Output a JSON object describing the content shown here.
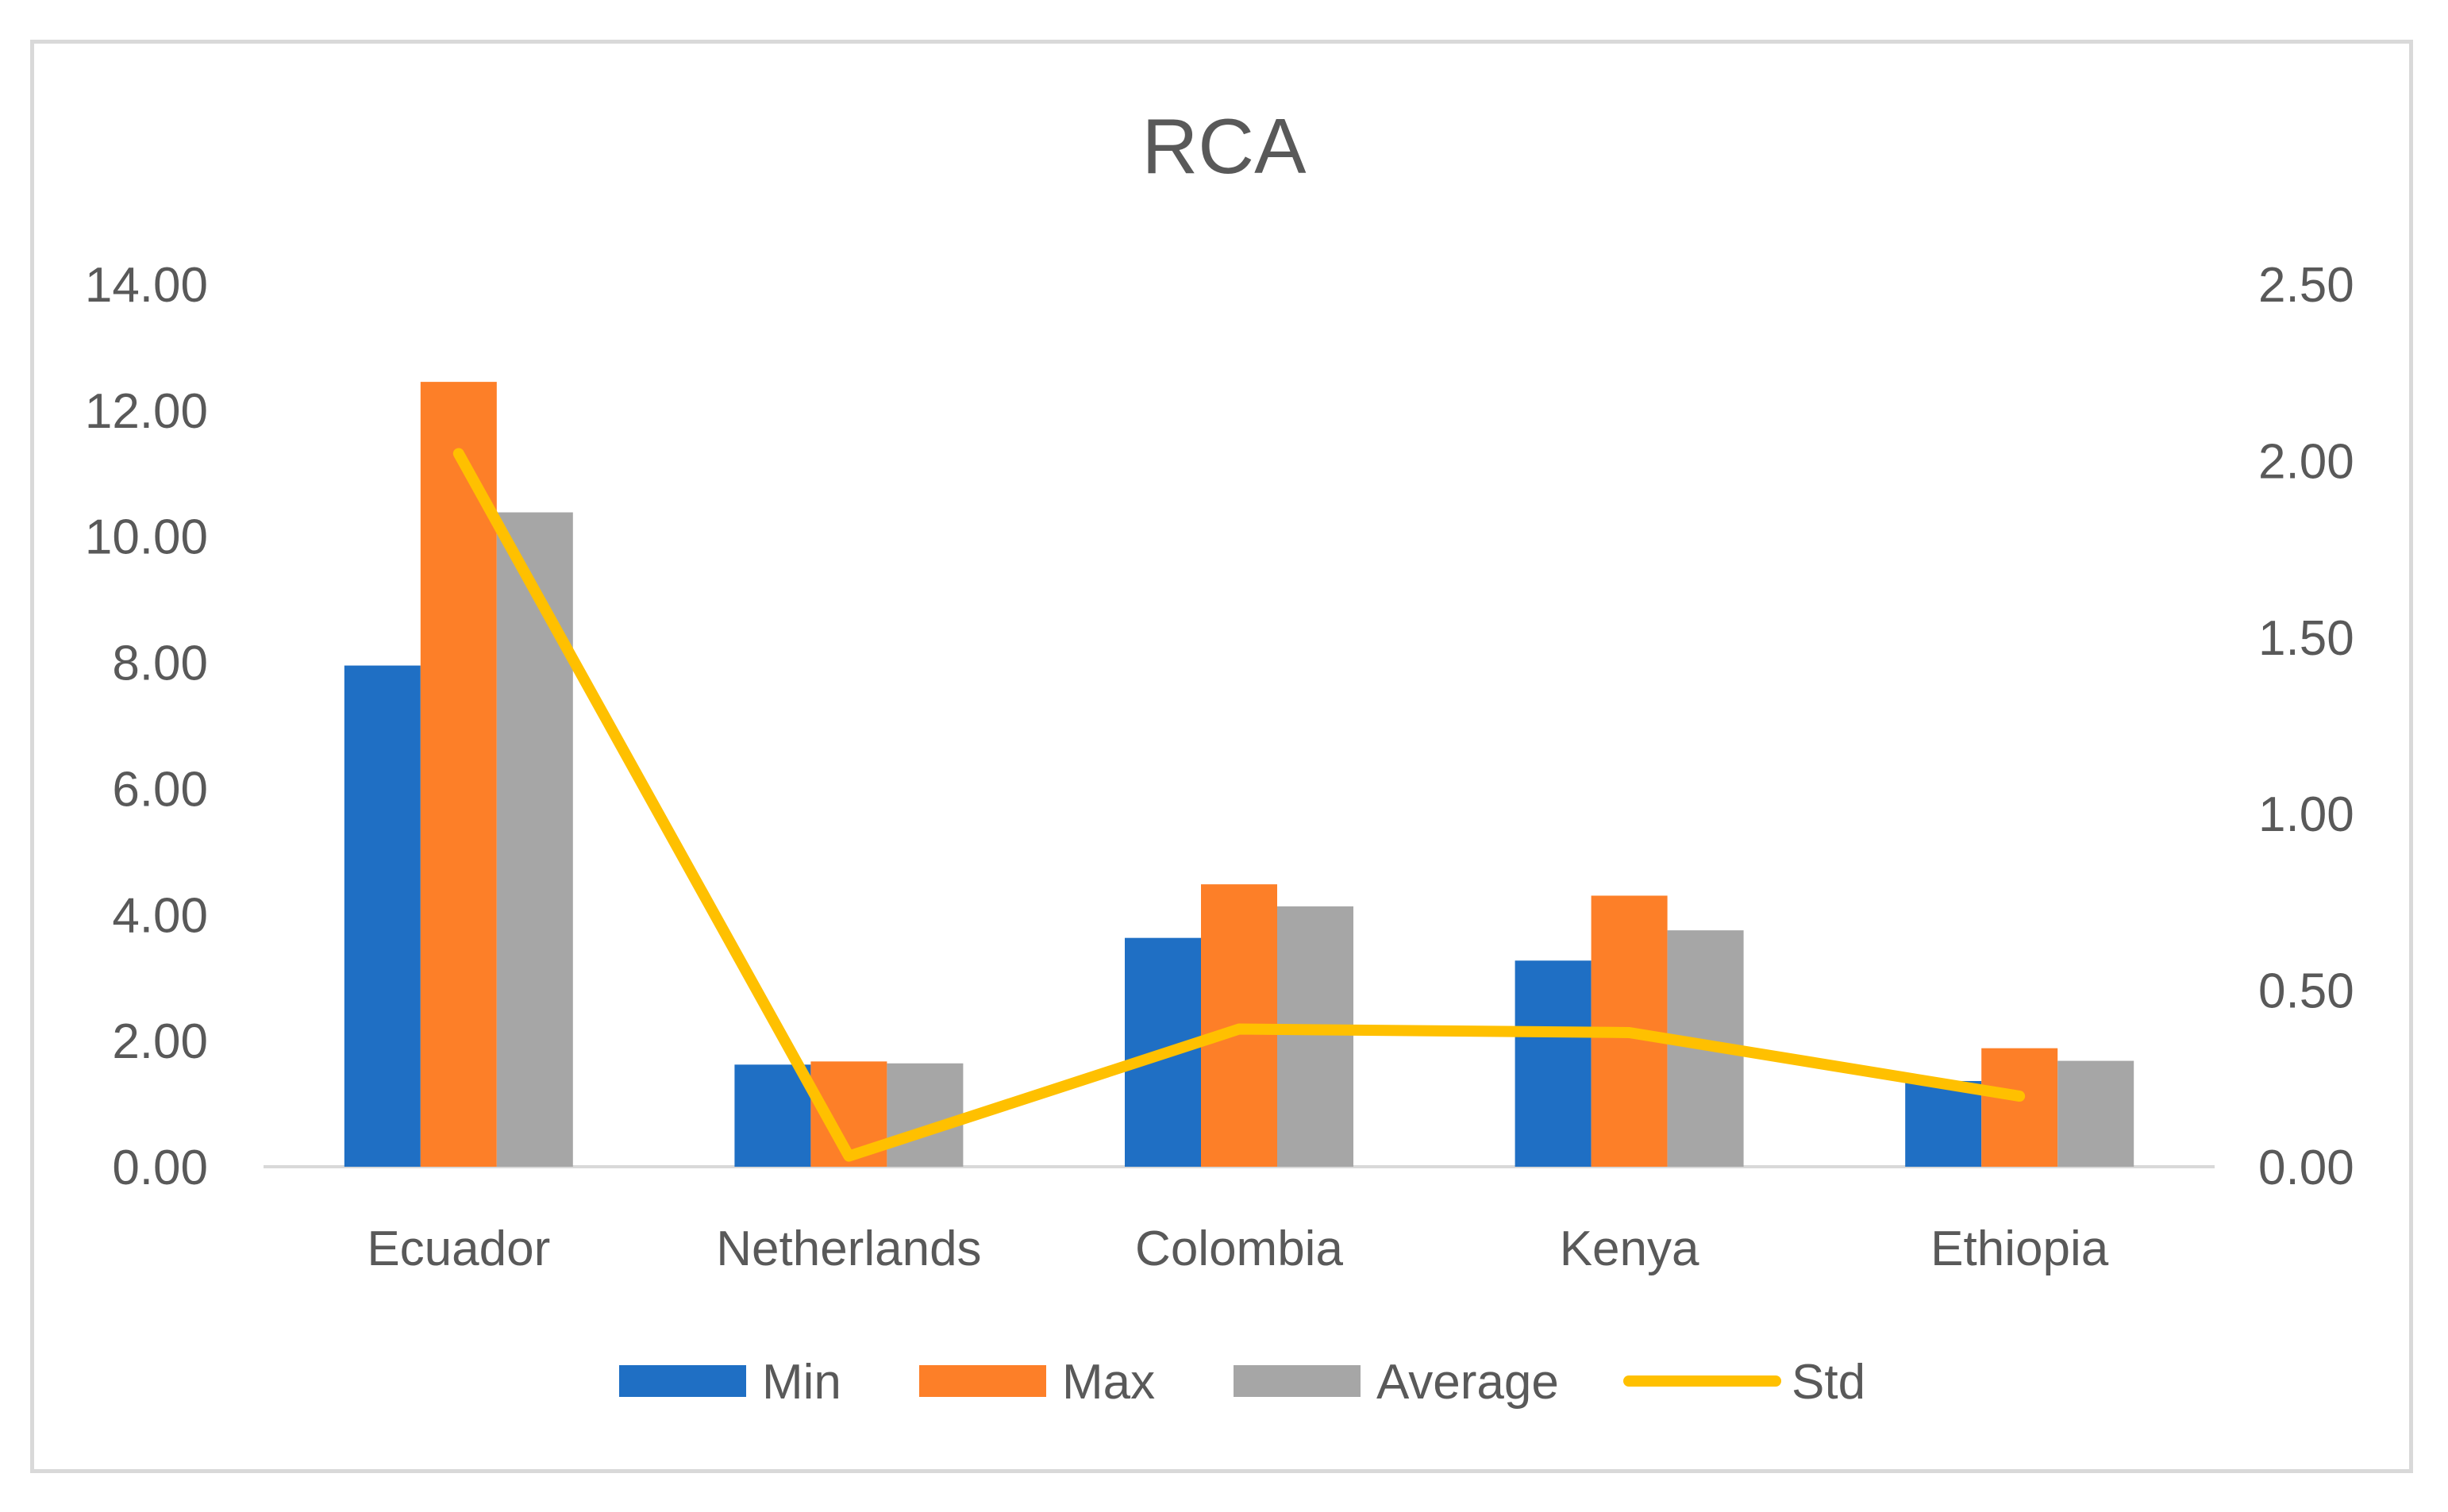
{
  "chart_data": {
    "type": "bar",
    "title": "RCA",
    "categories": [
      "Ecuador",
      "Netherlands",
      "Colombia",
      "Kenya",
      "Ethiopia"
    ],
    "series": [
      {
        "name": "Min",
        "type": "bar",
        "axis": "left",
        "color": "#1f6fc4",
        "values": [
          7.95,
          1.62,
          3.63,
          3.27,
          1.36
        ]
      },
      {
        "name": "Max",
        "type": "bar",
        "axis": "left",
        "color": "#fd7f28",
        "values": [
          12.45,
          1.67,
          4.48,
          4.3,
          1.88
        ]
      },
      {
        "name": "Average",
        "type": "bar",
        "axis": "left",
        "color": "#a6a6a6",
        "values": [
          10.38,
          1.64,
          4.13,
          3.75,
          1.68
        ]
      },
      {
        "name": "Std",
        "type": "line",
        "axis": "right",
        "color": "#ffc000",
        "values": [
          2.02,
          0.03,
          0.39,
          0.38,
          0.2
        ]
      }
    ],
    "y_left": {
      "min": 0,
      "max": 14,
      "step": 2,
      "tick_labels": [
        "0.00",
        "2.00",
        "4.00",
        "6.00",
        "8.00",
        "10.00",
        "12.00",
        "14.00"
      ]
    },
    "y_right": {
      "min": 0,
      "max": 2.5,
      "step": 0.5,
      "tick_labels": [
        "0.00",
        "0.50",
        "1.00",
        "1.50",
        "2.00",
        "2.50"
      ]
    },
    "xlabel": "",
    "ylabel": "",
    "grid": false,
    "legend": {
      "position": "bottom",
      "entries": [
        "Min",
        "Max",
        "Average",
        "Std"
      ]
    },
    "colors": {
      "text": "#595959",
      "title": "#595959",
      "axis_line": "#d9d9d9",
      "border": "#d9d9d9"
    }
  }
}
